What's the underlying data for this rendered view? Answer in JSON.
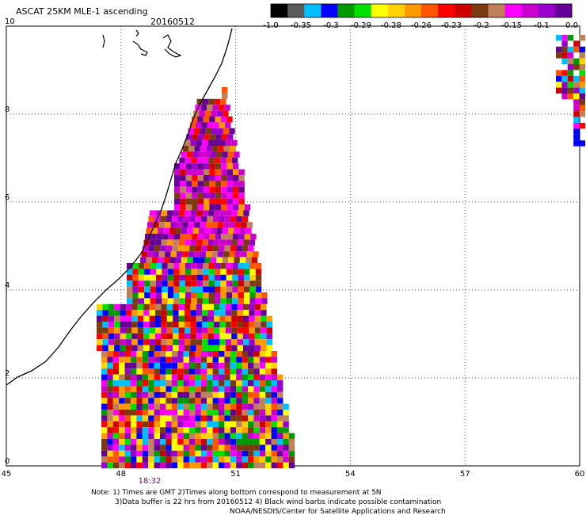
{
  "title": "ASCAT 25KM MLE-1 ascending",
  "date": "20160512",
  "colorbar": {
    "colors": [
      "#000000",
      "#5a5a5a",
      "#00bfff",
      "#0000ff",
      "#009900",
      "#00e000",
      "#ffff00",
      "#ffd200",
      "#ff9900",
      "#ff5500",
      "#ff0000",
      "#cc0000",
      "#7a3a10",
      "#c0805a",
      "#ff00ff",
      "#cc00cc",
      "#9900cc",
      "#660099"
    ],
    "labels": [
      "-1.0",
      "-0.35",
      "-0.3",
      "-0.29",
      "-0.28",
      "-0.26",
      "-0.23",
      "-0.2",
      "-0.15",
      "-0.1",
      "0.0"
    ]
  },
  "axes": {
    "lon_ticks": [
      "45",
      "48",
      "51",
      "54",
      "57",
      "60"
    ],
    "lat_ticks": [
      "0",
      "2",
      "4",
      "6",
      "8",
      "10"
    ],
    "xlim": [
      45,
      60
    ],
    "ylim": [
      0,
      10
    ]
  },
  "time_label": "18:32",
  "notes": [
    "Note: 1) Times are GMT 2)Times along bottom correspond to measurement at 5N",
    "3)Data buffer is 22 hrs from 20160512 4) Black wind barbs indicate possible contamination",
    "NOAA/NESDIS/Center for Satellite Applications and Research"
  ]
}
